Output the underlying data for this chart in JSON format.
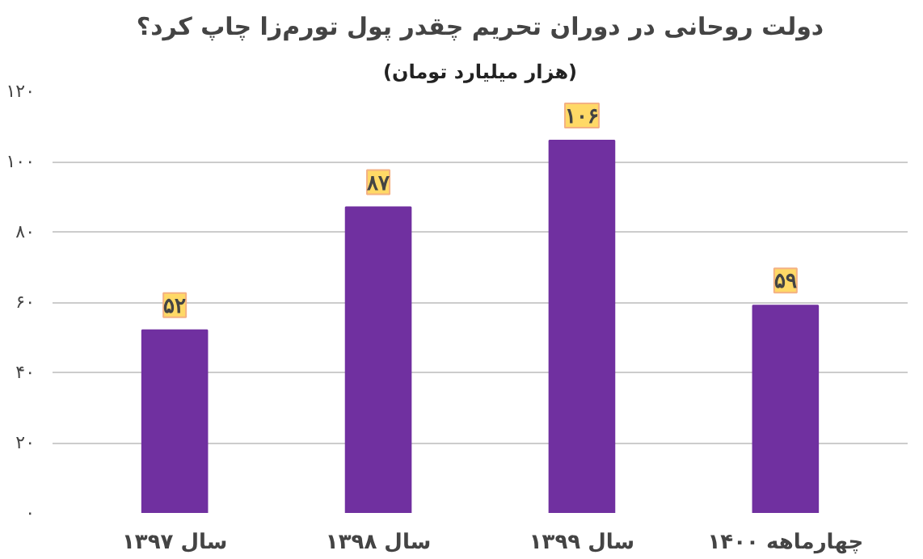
{
  "chart_data": {
    "type": "bar",
    "title": "دولت روحانی در دوران تحریم چقدر پول تورم‌زا چاپ کرد؟",
    "subtitle": "(هزار میلیارد تومان)",
    "categories": [
      "سال ۱۳۹۷",
      "سال ۱۳۹۸",
      "سال ۱۳۹۹",
      "چهارماهه ۱۴۰۰"
    ],
    "values": [
      52,
      87,
      106,
      59
    ],
    "color": "#7030a0",
    "value_labels": [
      "۵۲",
      "۸۷",
      "۱۰۶",
      "۵۹"
    ],
    "ylim": [
      0,
      120
    ],
    "yticks": [
      {
        "value": 0,
        "label": "۰"
      },
      {
        "value": 20,
        "label": "۲۰"
      },
      {
        "value": 40,
        "label": "۴۰"
      },
      {
        "value": 60,
        "label": "۶۰"
      },
      {
        "value": 80,
        "label": "۸۰"
      },
      {
        "value": 100,
        "label": "۱۰۰"
      },
      {
        "value": 120,
        "label": "۱۲۰"
      }
    ],
    "grid": "y"
  }
}
